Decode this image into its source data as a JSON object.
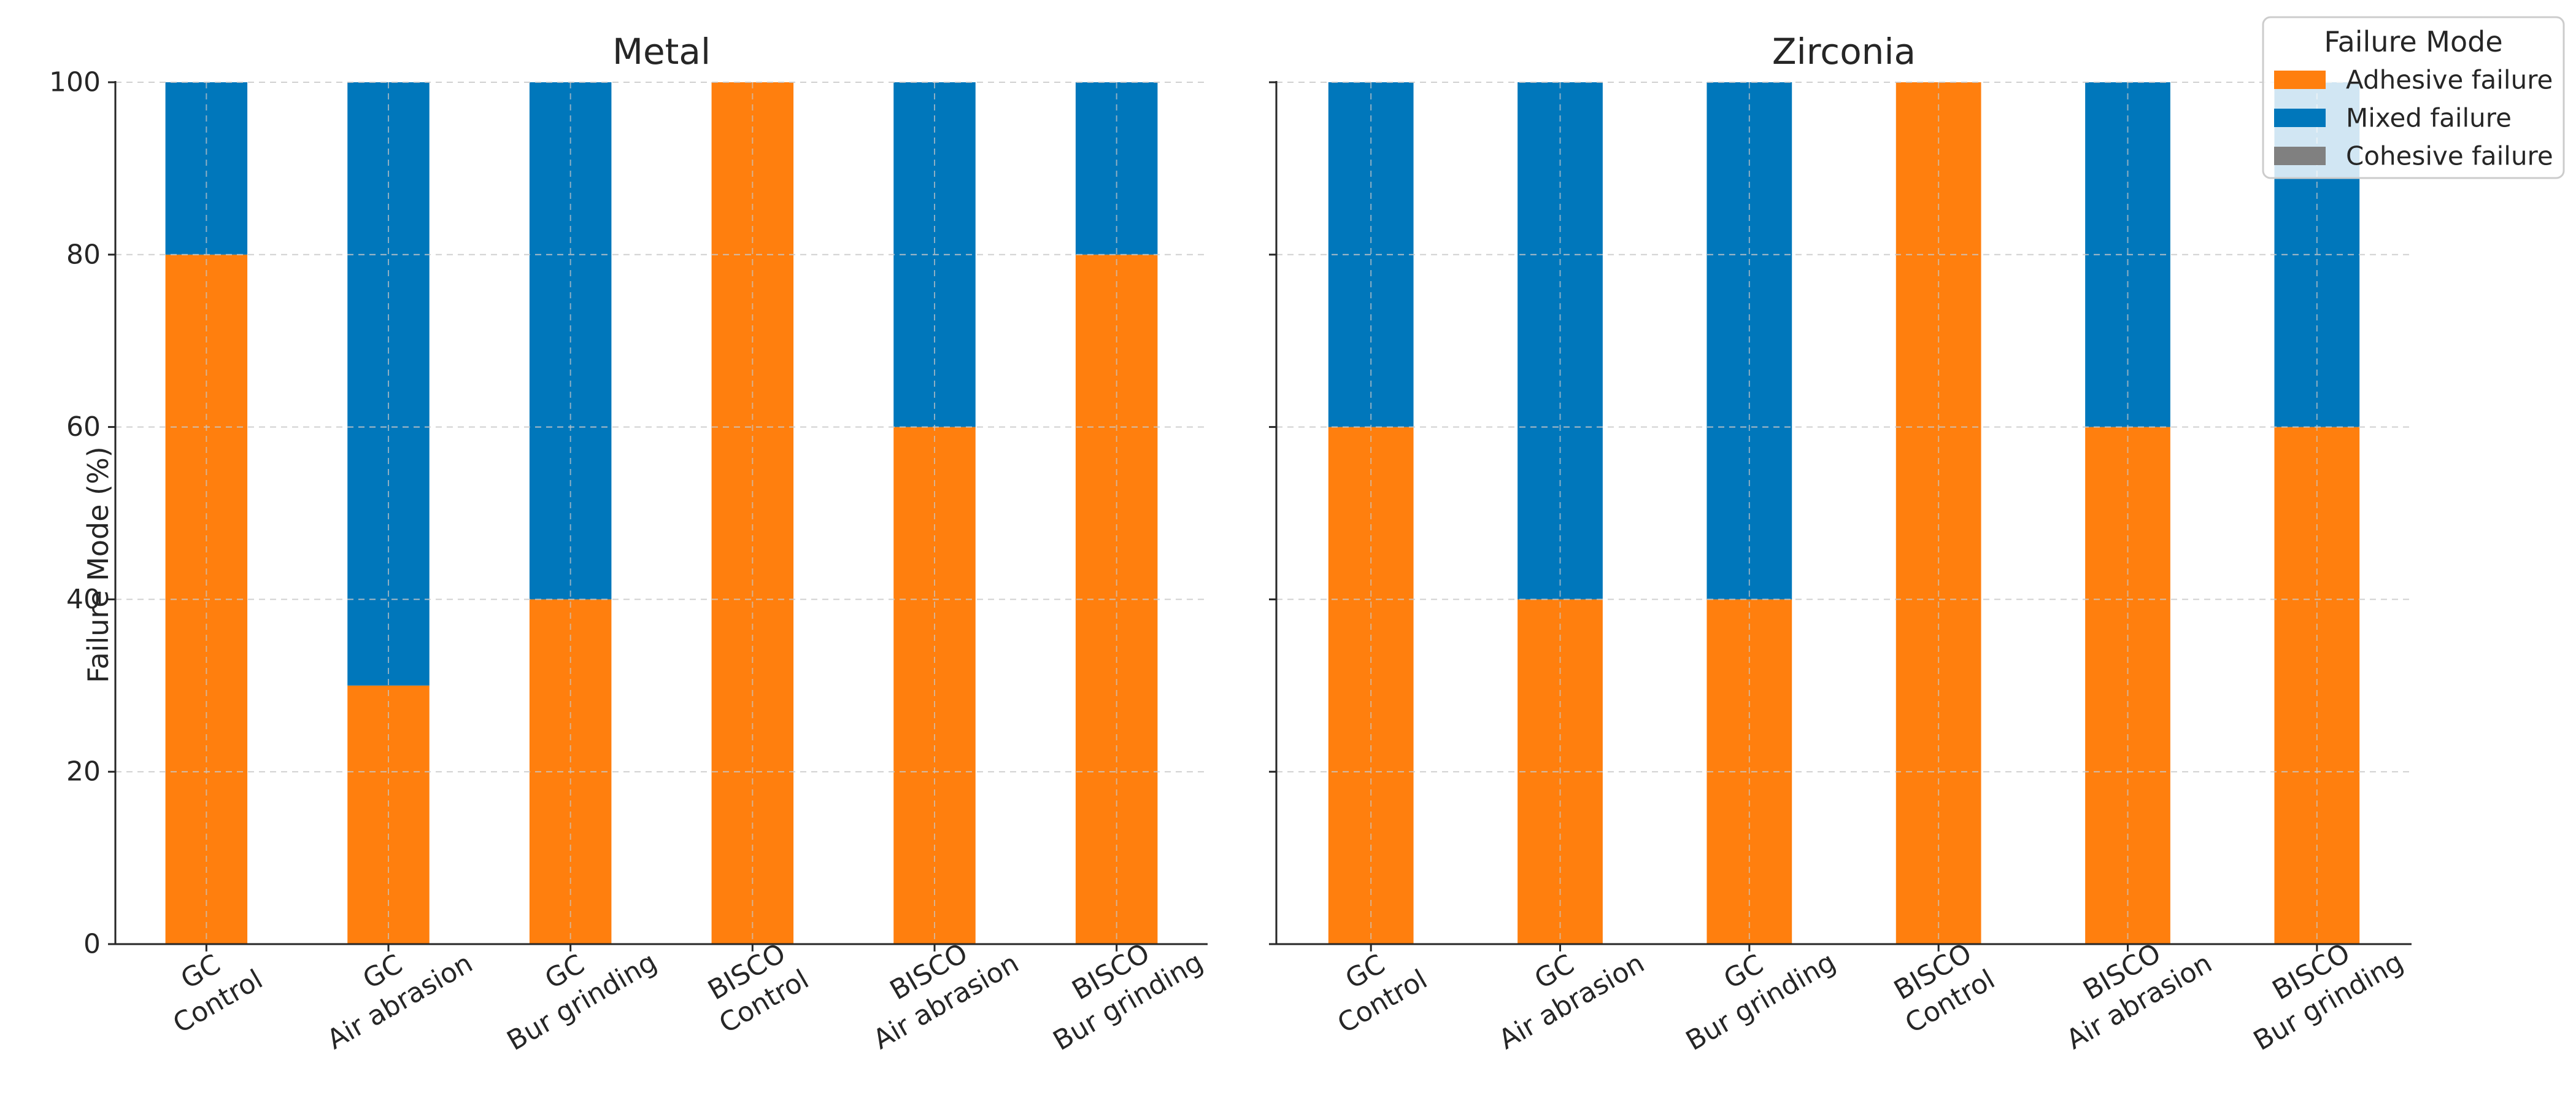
{
  "chart_data": [
    {
      "type": "bar",
      "stacked": true,
      "title": "Metal",
      "xlabel": "",
      "ylabel": "Failure Mode (%)",
      "ylim": [
        0,
        100
      ],
      "yticks": [
        0,
        20,
        40,
        60,
        80,
        100
      ],
      "grid": true,
      "categories": [
        [
          "GC",
          "Control"
        ],
        [
          "GC",
          "Air abrasion"
        ],
        [
          "GC",
          "Bur grinding"
        ],
        [
          "BISCO",
          "Control"
        ],
        [
          "BISCO",
          "Air abrasion"
        ],
        [
          "BISCO",
          "Bur grinding"
        ]
      ],
      "series": [
        {
          "name": "Adhesive failure",
          "color": "#ff7f0e",
          "values": [
            80,
            30,
            40,
            100,
            60,
            80
          ]
        },
        {
          "name": "Mixed failure",
          "color": "#0077bb",
          "values": [
            20,
            70,
            60,
            0,
            40,
            20
          ]
        },
        {
          "name": "Cohesive failure",
          "color": "#808080",
          "values": [
            0,
            0,
            0,
            0,
            0,
            0
          ]
        }
      ]
    },
    {
      "type": "bar",
      "stacked": true,
      "title": "Zirconia",
      "xlabel": "",
      "ylabel": "",
      "ylim": [
        0,
        100
      ],
      "yticks": [
        0,
        20,
        40,
        60,
        80,
        100
      ],
      "grid": true,
      "categories": [
        [
          "GC",
          "Control"
        ],
        [
          "GC",
          "Air abrasion"
        ],
        [
          "GC",
          "Bur grinding"
        ],
        [
          "BISCO",
          "Control"
        ],
        [
          "BISCO",
          "Air abrasion"
        ],
        [
          "BISCO",
          "Bur grinding"
        ]
      ],
      "series": [
        {
          "name": "Adhesive failure",
          "color": "#ff7f0e",
          "values": [
            60,
            40,
            40,
            100,
            60,
            60
          ]
        },
        {
          "name": "Mixed failure",
          "color": "#0077bb",
          "values": [
            40,
            60,
            60,
            0,
            40,
            40
          ]
        },
        {
          "name": "Cohesive failure",
          "color": "#808080",
          "values": [
            0,
            0,
            0,
            0,
            0,
            0
          ]
        }
      ]
    }
  ],
  "legend": {
    "title": "Failure Mode",
    "position": "top-right",
    "items": [
      {
        "label": "Adhesive failure",
        "color": "#ff7f0e"
      },
      {
        "label": "Mixed failure",
        "color": "#0077bb"
      },
      {
        "label": "Cohesive failure",
        "color": "#808080"
      }
    ]
  }
}
